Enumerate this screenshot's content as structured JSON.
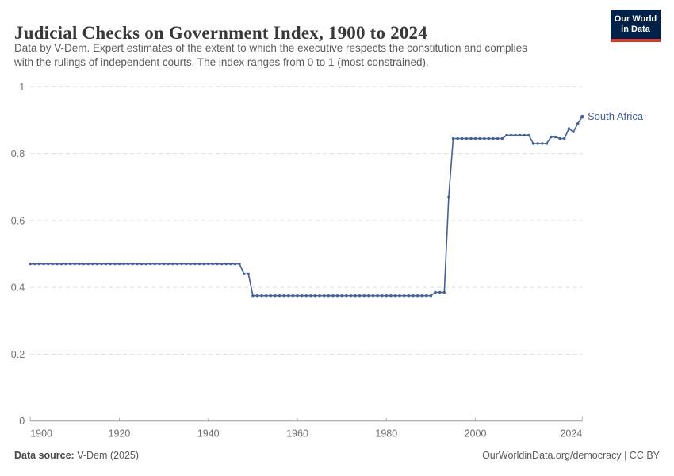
{
  "header": {
    "title": "Judicial Checks on Government Index, 1900 to 2024",
    "subtitle_line1": "Data by V-Dem. Expert estimates of the extent to which the executive respects the constitution and complies",
    "subtitle_line2": "with the rulings of independent courts. The index ranges from 0 to 1 (most constrained).",
    "logo": {
      "line1": "Our World",
      "line2": "in Data"
    }
  },
  "colors": {
    "accent": "#44619A",
    "grid": "#dedede",
    "axis": "#9a9a9a",
    "tick": "#b3b3b3",
    "axis_text": "#6e6e6e",
    "logo_bg": "#002147",
    "logo_red": "#d8352f"
  },
  "chart_data": {
    "type": "line",
    "title": "Judicial Checks on Government Index, 1900 to 2024",
    "xlabel": "",
    "ylabel": "",
    "xlim": [
      1900,
      2024
    ],
    "ylim": [
      0,
      1
    ],
    "grid": "horizontal-dashed",
    "legend_position": "end-of-line-label",
    "x_axis": {
      "ticks": [
        {
          "value": 1900,
          "label": "1900",
          "align": "start"
        },
        {
          "value": 1920,
          "label": "1920",
          "align": "middle"
        },
        {
          "value": 1940,
          "label": "1940",
          "align": "middle"
        },
        {
          "value": 1960,
          "label": "1960",
          "align": "middle"
        },
        {
          "value": 1980,
          "label": "1980",
          "align": "middle"
        },
        {
          "value": 2000,
          "label": "2000",
          "align": "middle"
        },
        {
          "value": 2024,
          "label": "2024",
          "align": "end"
        }
      ]
    },
    "y_axis": {
      "ticks": [
        {
          "value": 0,
          "label": "0"
        },
        {
          "value": 0.2,
          "label": "0.2"
        },
        {
          "value": 0.4,
          "label": "0.4"
        },
        {
          "value": 0.6,
          "label": "0.6"
        },
        {
          "value": 0.8,
          "label": "0.8"
        },
        {
          "value": 1,
          "label": "1"
        }
      ]
    },
    "series": [
      {
        "name": "South Africa",
        "color": "#44619A",
        "points": [
          [
            1900,
            0.47
          ],
          [
            1901,
            0.47
          ],
          [
            1902,
            0.47
          ],
          [
            1903,
            0.47
          ],
          [
            1904,
            0.47
          ],
          [
            1905,
            0.47
          ],
          [
            1906,
            0.47
          ],
          [
            1907,
            0.47
          ],
          [
            1908,
            0.47
          ],
          [
            1909,
            0.47
          ],
          [
            1910,
            0.47
          ],
          [
            1911,
            0.47
          ],
          [
            1912,
            0.47
          ],
          [
            1913,
            0.47
          ],
          [
            1914,
            0.47
          ],
          [
            1915,
            0.47
          ],
          [
            1916,
            0.47
          ],
          [
            1917,
            0.47
          ],
          [
            1918,
            0.47
          ],
          [
            1919,
            0.47
          ],
          [
            1920,
            0.47
          ],
          [
            1921,
            0.47
          ],
          [
            1922,
            0.47
          ],
          [
            1923,
            0.47
          ],
          [
            1924,
            0.47
          ],
          [
            1925,
            0.47
          ],
          [
            1926,
            0.47
          ],
          [
            1927,
            0.47
          ],
          [
            1928,
            0.47
          ],
          [
            1929,
            0.47
          ],
          [
            1930,
            0.47
          ],
          [
            1931,
            0.47
          ],
          [
            1932,
            0.47
          ],
          [
            1933,
            0.47
          ],
          [
            1934,
            0.47
          ],
          [
            1935,
            0.47
          ],
          [
            1936,
            0.47
          ],
          [
            1937,
            0.47
          ],
          [
            1938,
            0.47
          ],
          [
            1939,
            0.47
          ],
          [
            1940,
            0.47
          ],
          [
            1941,
            0.47
          ],
          [
            1942,
            0.47
          ],
          [
            1943,
            0.47
          ],
          [
            1944,
            0.47
          ],
          [
            1945,
            0.47
          ],
          [
            1946,
            0.47
          ],
          [
            1947,
            0.47
          ],
          [
            1948,
            0.44
          ],
          [
            1949,
            0.44
          ],
          [
            1950,
            0.375
          ],
          [
            1951,
            0.375
          ],
          [
            1952,
            0.375
          ],
          [
            1953,
            0.375
          ],
          [
            1954,
            0.375
          ],
          [
            1955,
            0.375
          ],
          [
            1956,
            0.375
          ],
          [
            1957,
            0.375
          ],
          [
            1958,
            0.375
          ],
          [
            1959,
            0.375
          ],
          [
            1960,
            0.375
          ],
          [
            1961,
            0.375
          ],
          [
            1962,
            0.375
          ],
          [
            1963,
            0.375
          ],
          [
            1964,
            0.375
          ],
          [
            1965,
            0.375
          ],
          [
            1966,
            0.375
          ],
          [
            1967,
            0.375
          ],
          [
            1968,
            0.375
          ],
          [
            1969,
            0.375
          ],
          [
            1970,
            0.375
          ],
          [
            1971,
            0.375
          ],
          [
            1972,
            0.375
          ],
          [
            1973,
            0.375
          ],
          [
            1974,
            0.375
          ],
          [
            1975,
            0.375
          ],
          [
            1976,
            0.375
          ],
          [
            1977,
            0.375
          ],
          [
            1978,
            0.375
          ],
          [
            1979,
            0.375
          ],
          [
            1980,
            0.375
          ],
          [
            1981,
            0.375
          ],
          [
            1982,
            0.375
          ],
          [
            1983,
            0.375
          ],
          [
            1984,
            0.375
          ],
          [
            1985,
            0.375
          ],
          [
            1986,
            0.375
          ],
          [
            1987,
            0.375
          ],
          [
            1988,
            0.375
          ],
          [
            1989,
            0.375
          ],
          [
            1990,
            0.375
          ],
          [
            1991,
            0.385
          ],
          [
            1992,
            0.385
          ],
          [
            1993,
            0.385
          ],
          [
            1994,
            0.67
          ],
          [
            1995,
            0.845
          ],
          [
            1996,
            0.845
          ],
          [
            1997,
            0.845
          ],
          [
            1998,
            0.845
          ],
          [
            1999,
            0.845
          ],
          [
            2000,
            0.845
          ],
          [
            2001,
            0.845
          ],
          [
            2002,
            0.845
          ],
          [
            2003,
            0.845
          ],
          [
            2004,
            0.845
          ],
          [
            2005,
            0.845
          ],
          [
            2006,
            0.845
          ],
          [
            2007,
            0.855
          ],
          [
            2008,
            0.855
          ],
          [
            2009,
            0.855
          ],
          [
            2010,
            0.855
          ],
          [
            2011,
            0.855
          ],
          [
            2012,
            0.855
          ],
          [
            2013,
            0.83
          ],
          [
            2014,
            0.83
          ],
          [
            2015,
            0.83
          ],
          [
            2016,
            0.83
          ],
          [
            2017,
            0.85
          ],
          [
            2018,
            0.85
          ],
          [
            2019,
            0.845
          ],
          [
            2020,
            0.845
          ],
          [
            2021,
            0.875
          ],
          [
            2022,
            0.865
          ],
          [
            2023,
            0.89
          ],
          [
            2024,
            0.91
          ]
        ]
      }
    ]
  },
  "footer": {
    "source_label": "Data source:",
    "source_value": " V-Dem (2025)",
    "link": "OurWorldinData.org/democracy | CC BY"
  }
}
